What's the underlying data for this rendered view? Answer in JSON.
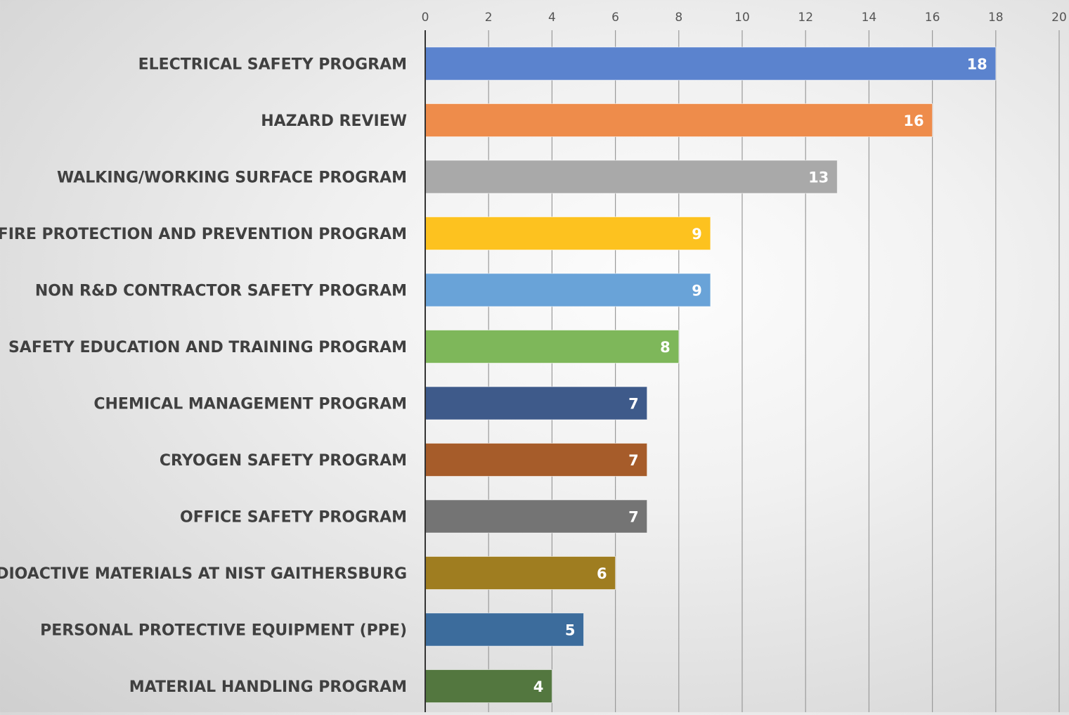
{
  "chart_data": {
    "type": "bar",
    "orientation": "horizontal",
    "title": "",
    "xlabel": "",
    "ylabel": "",
    "xlim": [
      0,
      20
    ],
    "x_ticks": [
      "0",
      "2",
      "4",
      "6",
      "8",
      "10",
      "12",
      "14",
      "16",
      "18",
      "20"
    ],
    "x_axis_position": "top",
    "grid": true,
    "legend": "none",
    "categories": [
      "ELECTRICAL SAFETY PROGRAM",
      "HAZARD REVIEW",
      "WALKING/WORKING SURFACE PROGRAM",
      "FIRE PROTECTION AND PREVENTION PROGRAM",
      "NON R&D CONTRACTOR SAFETY PROGRAM",
      "SAFETY EDUCATION AND TRAINING PROGRAM",
      "CHEMICAL MANAGEMENT PROGRAM",
      "CRYOGEN SAFETY PROGRAM",
      "OFFICE SAFETY PROGRAM",
      "RADIOACTIVE MATERIALS AT NIST GAITHERSBURG",
      "PERSONAL PROTECTIVE EQUIPMENT (PPE)",
      "MATERIAL HANDLING PROGRAM"
    ],
    "values": [
      18,
      16,
      13,
      9,
      9,
      8,
      7,
      7,
      7,
      6,
      5,
      4
    ],
    "data_labels": [
      "18",
      "16",
      "13",
      "9",
      "9",
      "8",
      "7",
      "7",
      "7",
      "6",
      "5",
      "4"
    ],
    "bar_colors": [
      "#5b83ce",
      "#ee8c4b",
      "#a9a9a9",
      "#fdc21f",
      "#69a3d8",
      "#7eb75a",
      "#3e5a8a",
      "#a65c2a",
      "#747474",
      "#9f7d20",
      "#3c6c9c",
      "#53773f"
    ],
    "category_label_color": "#404040",
    "tick_label_color": "#555555",
    "data_label_color": "#ffffff",
    "gridline_color": "#9a9a9a",
    "axis_line_color": "#333333"
  }
}
